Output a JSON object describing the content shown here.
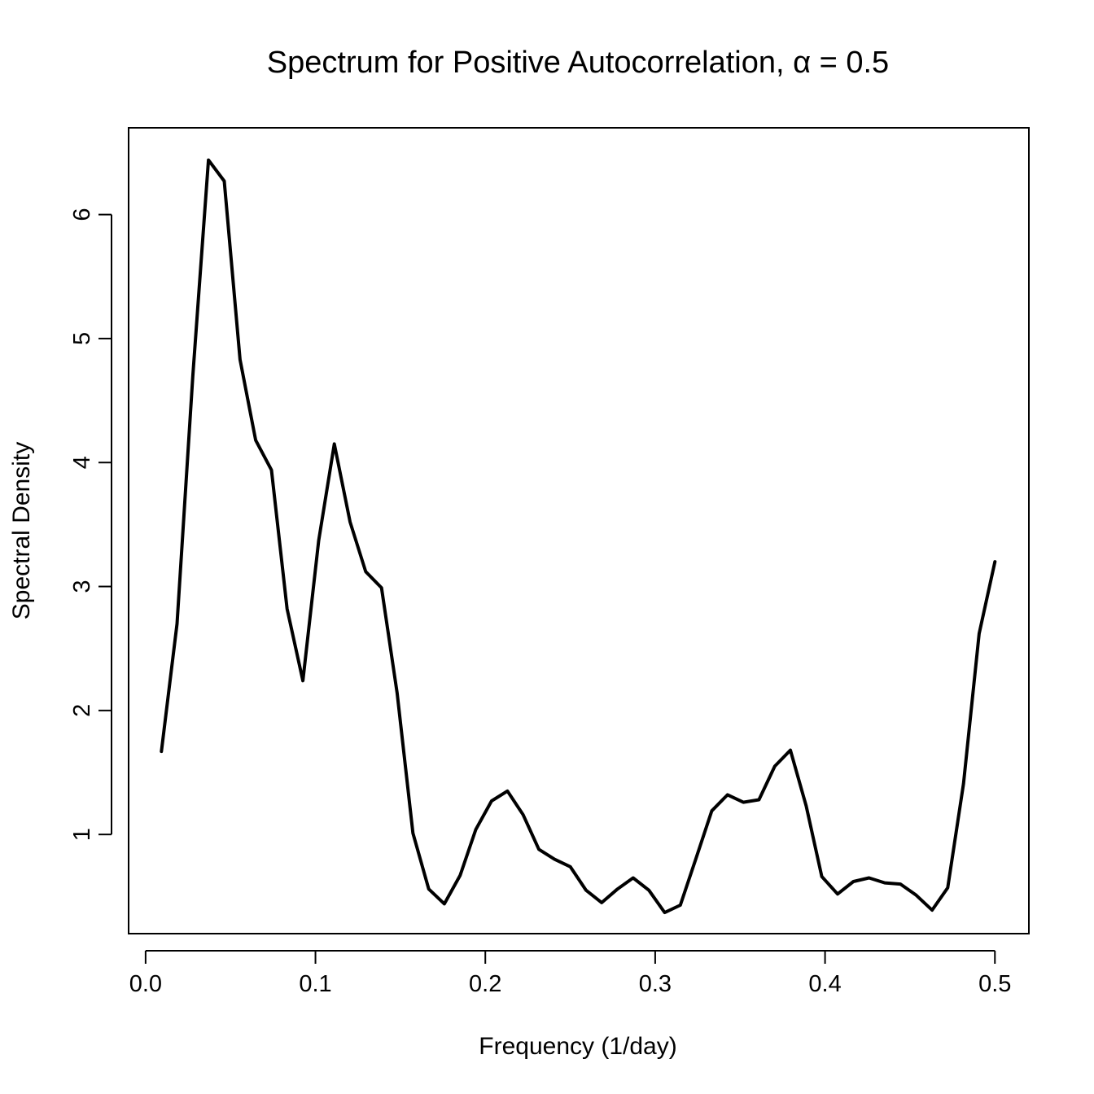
{
  "chart_data": {
    "type": "line",
    "title": "Spectrum for Positive Autocorrelation, α = 0.5",
    "xlabel": "Frequency (1/day)",
    "ylabel": "Spectral Density",
    "xlim": [
      -0.01,
      0.52
    ],
    "ylim": [
      0.2,
      6.7
    ],
    "xticks": [
      0.0,
      0.1,
      0.2,
      0.3,
      0.4,
      0.5
    ],
    "xtick_labels": [
      "0.0",
      "0.1",
      "0.2",
      "0.3",
      "0.4",
      "0.5"
    ],
    "yticks": [
      1,
      2,
      3,
      4,
      5,
      6
    ],
    "ytick_labels": [
      "1",
      "2",
      "3",
      "4",
      "5",
      "6"
    ],
    "grid": false,
    "color": "#000000",
    "x": [
      0.0093,
      0.0185,
      0.0278,
      0.037,
      0.0463,
      0.0556,
      0.0648,
      0.0741,
      0.0833,
      0.0926,
      0.1019,
      0.1111,
      0.1204,
      0.1296,
      0.1389,
      0.1481,
      0.1574,
      0.1667,
      0.1759,
      0.1852,
      0.1944,
      0.2037,
      0.213,
      0.2222,
      0.2315,
      0.2407,
      0.25,
      0.2593,
      0.2685,
      0.2778,
      0.287,
      0.2963,
      0.3056,
      0.3148,
      0.3241,
      0.3333,
      0.3426,
      0.3519,
      0.3611,
      0.3704,
      0.3796,
      0.3889,
      0.3981,
      0.4074,
      0.4167,
      0.4259,
      0.4352,
      0.4444,
      0.4537,
      0.463,
      0.4722,
      0.4815,
      0.4907,
      0.5
    ],
    "y": [
      1.67,
      2.7,
      4.7,
      6.44,
      6.27,
      4.83,
      4.18,
      3.94,
      2.82,
      2.24,
      3.37,
      4.15,
      3.52,
      3.12,
      2.99,
      2.14,
      1.01,
      0.56,
      0.44,
      0.67,
      1.04,
      1.27,
      1.35,
      1.16,
      0.88,
      0.8,
      0.74,
      0.55,
      0.45,
      0.56,
      0.65,
      0.55,
      0.37,
      0.43,
      0.81,
      1.19,
      1.32,
      1.26,
      1.28,
      1.55,
      1.68,
      1.23,
      0.66,
      0.52,
      0.62,
      0.65,
      0.61,
      0.6,
      0.51,
      0.39,
      0.57,
      1.41,
      2.62,
      3.2
    ]
  }
}
